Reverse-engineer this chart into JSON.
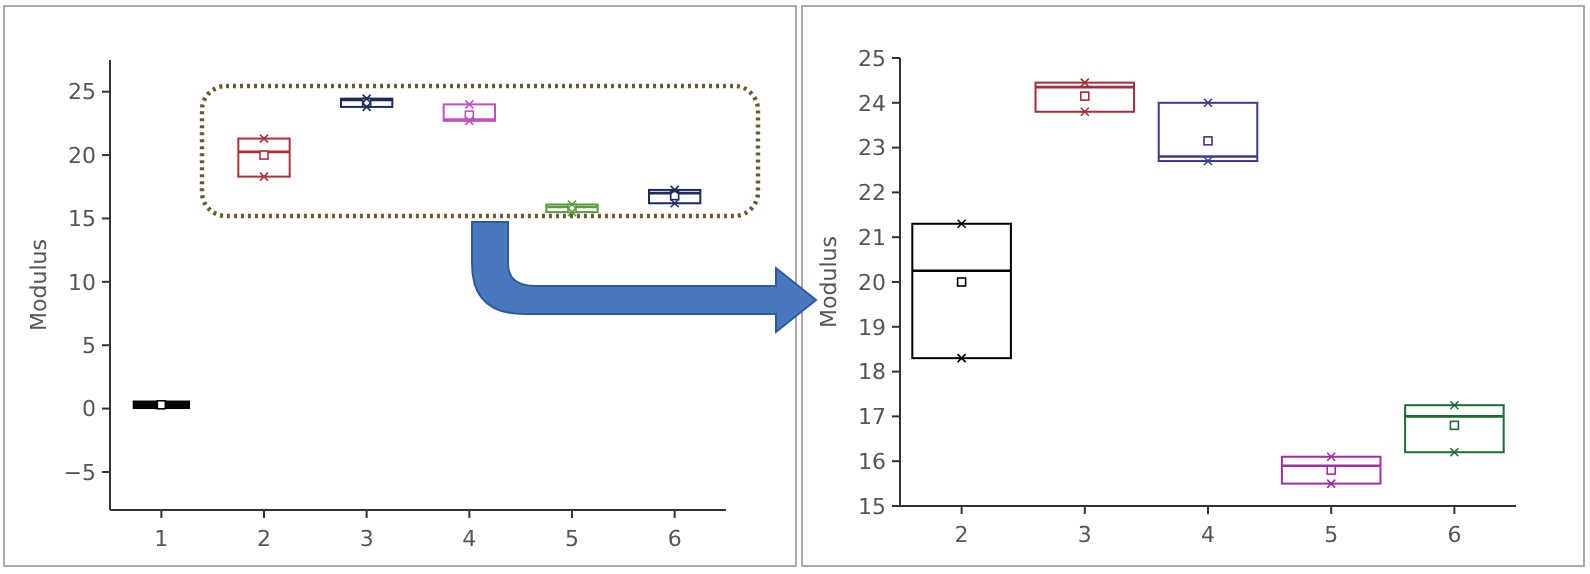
{
  "chart_data": [
    {
      "type": "box",
      "ylabel": "Modulus",
      "categories": [
        "1",
        "2",
        "3",
        "4",
        "5",
        "6"
      ],
      "colors": [
        "#000000",
        "#b0303a",
        "#1f2a5e",
        "#c050c0",
        "#5a9a40",
        "#1f2a5e"
      ],
      "ylim": [
        -8,
        27.5
      ],
      "yticks": [
        -5,
        0,
        5,
        10,
        15,
        20,
        25
      ],
      "boxes": [
        {
          "low": 0.2,
          "q1": 0.2,
          "median": 0.3,
          "q3": 0.4,
          "high": 0.4,
          "mean": 0.3
        },
        {
          "low": 18.3,
          "q1": 18.3,
          "median": 20.25,
          "q3": 21.3,
          "high": 21.3,
          "mean": 20.0,
          "outliers": [
            18.3,
            21.3
          ]
        },
        {
          "low": 23.8,
          "q1": 23.8,
          "median": 24.35,
          "q3": 24.45,
          "high": 24.45,
          "mean": 24.15,
          "outliers": [
            23.8,
            24.45
          ]
        },
        {
          "low": 22.7,
          "q1": 22.7,
          "median": 22.8,
          "q3": 24.0,
          "high": 24.0,
          "mean": 23.15,
          "outliers": [
            22.7,
            24.0
          ]
        },
        {
          "low": 15.5,
          "q1": 15.5,
          "median": 15.9,
          "q3": 16.1,
          "high": 16.1,
          "mean": 15.8,
          "outliers": [
            15.5,
            16.1
          ]
        },
        {
          "low": 16.2,
          "q1": 16.2,
          "median": 17.0,
          "q3": 17.25,
          "high": 17.25,
          "mean": 16.8,
          "outliers": [
            16.2,
            17.25
          ]
        }
      ]
    },
    {
      "type": "box",
      "ylabel": "Modulus",
      "categories": [
        "2",
        "3",
        "4",
        "5",
        "6"
      ],
      "colors": [
        "#000000",
        "#a0303a",
        "#3a3a90",
        "#a030a0",
        "#1f6a30"
      ],
      "ylim": [
        15,
        25
      ],
      "yticks": [
        15,
        16,
        17,
        18,
        19,
        20,
        21,
        22,
        23,
        24,
        25
      ],
      "boxes": [
        {
          "low": 18.3,
          "q1": 18.3,
          "median": 20.25,
          "q3": 21.3,
          "high": 21.3,
          "mean": 20.0,
          "outliers": [
            18.3,
            21.3
          ]
        },
        {
          "low": 23.8,
          "q1": 23.8,
          "median": 24.35,
          "q3": 24.45,
          "high": 24.45,
          "mean": 24.15,
          "outliers": [
            23.8,
            24.45
          ]
        },
        {
          "low": 22.7,
          "q1": 22.7,
          "median": 22.8,
          "q3": 24.0,
          "high": 24.0,
          "mean": 23.15,
          "outliers": [
            22.7,
            24.0
          ]
        },
        {
          "low": 15.5,
          "q1": 15.5,
          "median": 15.9,
          "q3": 16.1,
          "high": 16.1,
          "mean": 15.8,
          "outliers": [
            15.5,
            16.1
          ]
        },
        {
          "low": 16.2,
          "q1": 16.2,
          "median": 17.0,
          "q3": 17.25,
          "high": 17.25,
          "mean": 16.8,
          "outliers": [
            16.2,
            17.25
          ]
        }
      ]
    }
  ]
}
